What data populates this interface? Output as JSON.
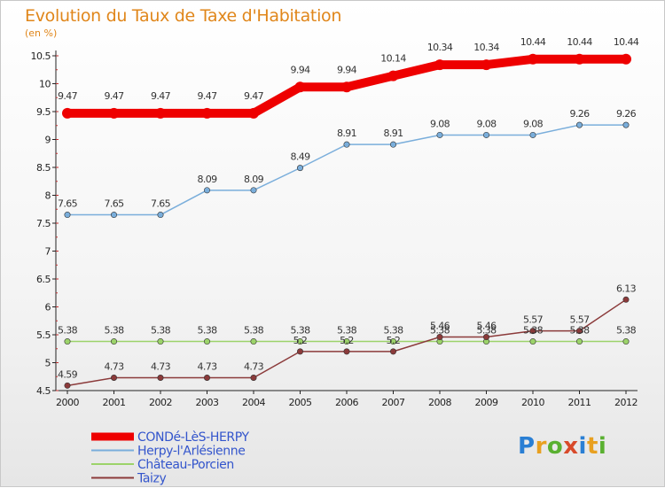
{
  "chart_data": {
    "type": "line",
    "title": "Evolution du Taux de Taxe d'Habitation",
    "unit_label": "(en %)",
    "x": [
      2000,
      2001,
      2002,
      2003,
      2004,
      2005,
      2006,
      2007,
      2008,
      2009,
      2010,
      2011,
      2012
    ],
    "ylim": [
      4.5,
      10.5
    ],
    "yticks": [
      4.5,
      5,
      5.5,
      6,
      6.5,
      7,
      7.5,
      8,
      8.5,
      9,
      9.5,
      10,
      10.5
    ],
    "grid": false,
    "legend_position": "bottom-left",
    "series": [
      {
        "name": "CONDé-LèS-HERPY",
        "color": "#ee0000",
        "values": [
          9.47,
          9.47,
          9.47,
          9.47,
          9.47,
          9.94,
          9.94,
          10.14,
          10.34,
          10.34,
          10.44,
          10.44,
          10.44
        ],
        "labels": [
          "9.47",
          "9.47",
          "9.47",
          "9.47",
          "9.47",
          "9.94",
          "9.94",
          "10.14",
          "10.34",
          "10.34",
          "10.44",
          "10.44",
          "10.44"
        ]
      },
      {
        "name": "Herpy-l'Arlésienne",
        "color": "#7aaedb",
        "values": [
          7.65,
          7.65,
          7.65,
          8.09,
          8.09,
          8.49,
          8.91,
          8.91,
          9.08,
          9.08,
          9.08,
          9.26,
          9.26
        ],
        "labels": [
          "7.65",
          "7.65",
          "7.65",
          "8.09",
          "8.09",
          "8.49",
          "8.91",
          "8.91",
          "9.08",
          "9.08",
          "9.08",
          "9.26",
          "9.26"
        ]
      },
      {
        "name": "Château-Porcien",
        "color": "#9cd36a",
        "values": [
          5.38,
          5.38,
          5.38,
          5.38,
          5.38,
          5.38,
          5.38,
          5.38,
          5.38,
          5.38,
          5.38,
          5.38,
          5.38
        ],
        "labels": [
          "5.38",
          "5.38",
          "5.38",
          "5.38",
          "5.38",
          "5.38",
          "5.38",
          "5.38",
          "5.38",
          "5.38",
          "5.38",
          "5.38",
          "5.38"
        ]
      },
      {
        "name": "Taizy",
        "color": "#8b3a3a",
        "values": [
          4.59,
          4.73,
          4.73,
          4.73,
          4.73,
          5.2,
          5.2,
          5.2,
          5.46,
          5.46,
          5.57,
          5.57,
          6.13
        ],
        "labels": [
          "4.59",
          "4.73",
          "4.73",
          "4.73",
          "4.73",
          "5.2",
          "5.2",
          "5.2",
          "5.46",
          "5.46",
          "5.57",
          "5.57",
          "6.13"
        ]
      }
    ]
  },
  "logo": {
    "letters": [
      "P",
      "r",
      "o",
      "x",
      "i",
      "t",
      "i"
    ]
  }
}
